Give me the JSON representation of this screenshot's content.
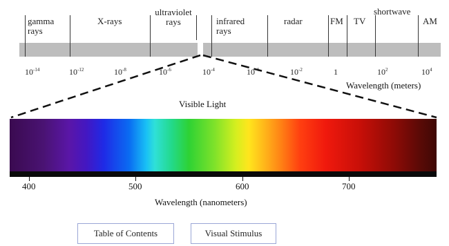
{
  "regions": [
    {
      "name": "gamma rays"
    },
    {
      "name": "X-rays"
    },
    {
      "name": "ultraviolet rays"
    },
    {
      "name": "infrared rays"
    },
    {
      "name": "radar"
    },
    {
      "name": "FM"
    },
    {
      "name": "TV"
    },
    {
      "name": "shortwave"
    },
    {
      "name": "AM"
    }
  ],
  "region_lines": {
    "gamma": [
      "gamma",
      "rays"
    ],
    "xray": [
      "X-rays"
    ],
    "uv": [
      "ultraviolet",
      "rays"
    ],
    "ir": [
      "infrared",
      "rays"
    ],
    "radar": [
      "radar"
    ],
    "fm": [
      "FM"
    ],
    "tv": [
      "TV"
    ],
    "shortwave": [
      "shortwave"
    ],
    "am": [
      "AM"
    ]
  },
  "wavelength_ticks": [
    {
      "base": "10",
      "exp": "-14"
    },
    {
      "base": "10",
      "exp": "-12"
    },
    {
      "base": "10",
      "exp": "-8"
    },
    {
      "base": "10",
      "exp": "-6"
    },
    {
      "base": "10",
      "exp": "-4"
    },
    {
      "base": "10",
      "exp": "-4"
    },
    {
      "base": "10",
      "exp": "-2"
    },
    {
      "base": "1",
      "exp": ""
    },
    {
      "base": "10",
      "exp": "2"
    },
    {
      "base": "10",
      "exp": "4"
    }
  ],
  "wavelength_meters_label": "Wavelength (meters)",
  "visible_title": "Visible Light",
  "nm_ticks": [
    "400",
    "500",
    "600",
    "700"
  ],
  "nm_title": "Wavelength (nanometers)",
  "buttons": {
    "table_of_contents": "Table of Contents",
    "visual_stimulus": "Visual Stimulus"
  }
}
